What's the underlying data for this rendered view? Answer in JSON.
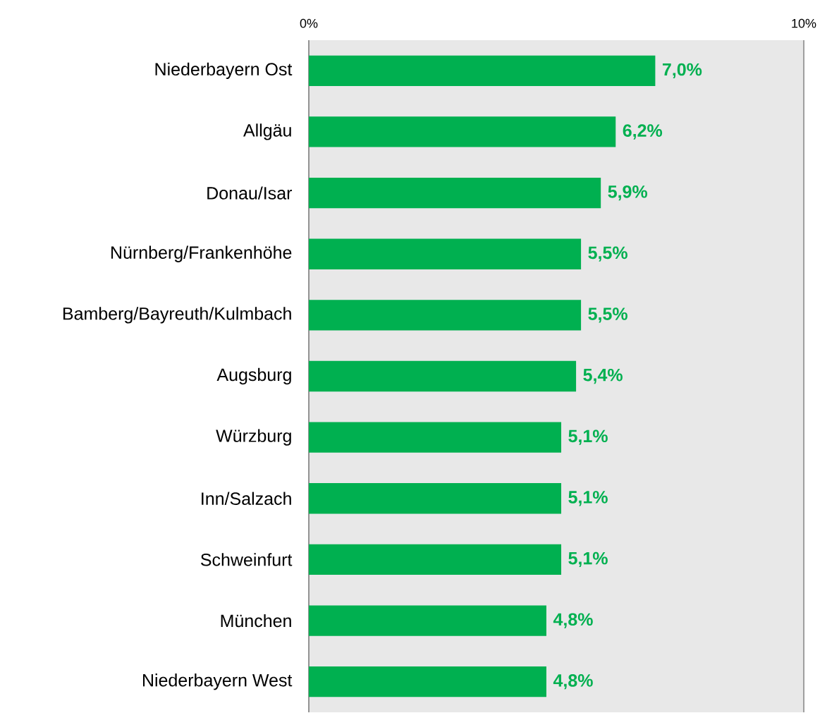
{
  "chart_data": {
    "type": "bar",
    "orientation": "horizontal",
    "categories": [
      "Niederbayern Ost",
      "Allgäu",
      "Donau/Isar",
      "Nürnberg/Frankenhöhe",
      "Bamberg/Bayreuth/Kulmbach",
      "Augsburg",
      "Würzburg",
      "Inn/Salzach",
      "Schweinfurt",
      "München",
      "Niederbayern West"
    ],
    "values": [
      7.0,
      6.2,
      5.9,
      5.5,
      5.5,
      5.4,
      5.1,
      5.1,
      5.1,
      4.8,
      4.8
    ],
    "value_labels": [
      "7,0%",
      "6,2%",
      "5,9%",
      "5,5%",
      "5,5%",
      "5,4%",
      "5,1%",
      "5,1%",
      "5,1%",
      "4,8%",
      "4,8%"
    ],
    "color": "#00b050",
    "xlim": [
      0,
      10
    ],
    "xticks": [
      {
        "value": 0,
        "label": "0%"
      },
      {
        "value": 10,
        "label": "10%"
      }
    ]
  }
}
